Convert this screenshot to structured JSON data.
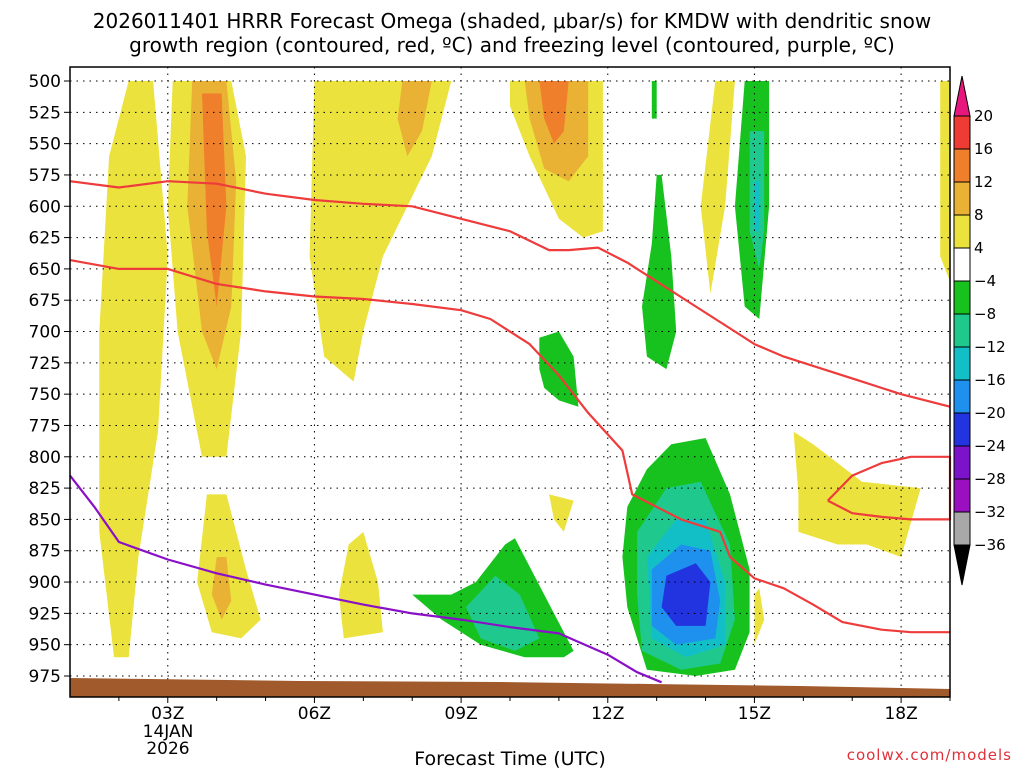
{
  "chart_data": {
    "type": "heatmap",
    "title": "2026011401 HRRR Forecast Omega (shaded, μbar/s) for KMDW with dendritic snow",
    "title_line2": "growth region (contoured, red, ºC) and freezing level (contoured, purple, ºC)",
    "xlabel": "Forecast Time (UTC)",
    "ylabel": "",
    "credit": "coolwx.com/models",
    "x_range_hours": [
      1,
      19
    ],
    "y_range_hpa": [
      975,
      500
    ],
    "y_ticks": [
      500,
      525,
      550,
      575,
      600,
      625,
      650,
      675,
      700,
      725,
      750,
      775,
      800,
      825,
      850,
      875,
      900,
      925,
      950,
      975
    ],
    "x_ticks": [
      {
        "hour": 3,
        "label": "03Z"
      },
      {
        "hour": 6,
        "label": "06Z"
      },
      {
        "hour": 9,
        "label": "09Z"
      },
      {
        "hour": 12,
        "label": "12Z"
      },
      {
        "hour": 15,
        "label": "15Z"
      },
      {
        "hour": 18,
        "label": "18Z"
      }
    ],
    "date_label": [
      "14JAN",
      "2026"
    ],
    "colorbar": {
      "labels": [
        "20",
        "16",
        "12",
        "8",
        "4",
        "−4",
        "−8",
        "−12",
        "−16",
        "−20",
        "−24",
        "−28",
        "−32",
        "−36"
      ],
      "colors": [
        "#e8177e",
        "#ee3b34",
        "#f07f2c",
        "#e9b234",
        "#ece23e",
        "#ffffff",
        "#17c21e",
        "#1fc98d",
        "#13bfc7",
        "#1e90ee",
        "#2233e0",
        "#7a13c9",
        "#9a10c0",
        "#a8a8a8",
        "#000000"
      ]
    },
    "omega_regions": [
      {
        "level": 4,
        "color": "#ece23e",
        "pts": [
          [
            1.8,
            560
          ],
          [
            2.2,
            500
          ],
          [
            2.7,
            500
          ],
          [
            3.0,
            640
          ],
          [
            2.8,
            780
          ],
          [
            2.4,
            880
          ],
          [
            2.2,
            960
          ],
          [
            1.9,
            960
          ],
          [
            1.6,
            860
          ],
          [
            1.6,
            700
          ]
        ]
      },
      {
        "level": 4,
        "color": "#ece23e",
        "pts": [
          [
            3.1,
            500
          ],
          [
            4.3,
            500
          ],
          [
            4.6,
            560
          ],
          [
            4.5,
            700
          ],
          [
            4.2,
            800
          ],
          [
            3.7,
            800
          ],
          [
            3.2,
            700
          ],
          [
            3.0,
            600
          ]
        ]
      },
      {
        "level": 8,
        "color": "#e9b234",
        "pts": [
          [
            3.5,
            500
          ],
          [
            4.2,
            500
          ],
          [
            4.4,
            580
          ],
          [
            4.3,
            680
          ],
          [
            4.0,
            730
          ],
          [
            3.7,
            700
          ],
          [
            3.4,
            600
          ]
        ]
      },
      {
        "level": 12,
        "color": "#f07f2c",
        "pts": [
          [
            3.7,
            510
          ],
          [
            4.1,
            510
          ],
          [
            4.2,
            600
          ],
          [
            4.0,
            680
          ],
          [
            3.8,
            620
          ]
        ]
      },
      {
        "level": 4,
        "color": "#ece23e",
        "pts": [
          [
            3.8,
            830
          ],
          [
            4.2,
            830
          ],
          [
            4.6,
            890
          ],
          [
            4.9,
            930
          ],
          [
            4.5,
            945
          ],
          [
            3.9,
            940
          ],
          [
            3.6,
            900
          ]
        ]
      },
      {
        "level": 8,
        "color": "#e9b234",
        "pts": [
          [
            4.0,
            880
          ],
          [
            4.2,
            880
          ],
          [
            4.3,
            915
          ],
          [
            4.1,
            930
          ],
          [
            3.9,
            910
          ]
        ]
      },
      {
        "level": 4,
        "color": "#ece23e",
        "pts": [
          [
            6.0,
            500
          ],
          [
            8.8,
            500
          ],
          [
            8.4,
            560
          ],
          [
            7.4,
            640
          ],
          [
            7.0,
            700
          ],
          [
            6.8,
            740
          ],
          [
            6.2,
            720
          ],
          [
            5.9,
            640
          ]
        ]
      },
      {
        "level": 8,
        "color": "#e9b234",
        "pts": [
          [
            7.8,
            500
          ],
          [
            8.4,
            500
          ],
          [
            8.2,
            540
          ],
          [
            7.9,
            560
          ],
          [
            7.7,
            530
          ]
        ]
      },
      {
        "level": 4,
        "color": "#ece23e",
        "pts": [
          [
            6.7,
            870
          ],
          [
            7.0,
            860
          ],
          [
            7.3,
            900
          ],
          [
            7.4,
            940
          ],
          [
            6.6,
            945
          ],
          [
            6.5,
            910
          ]
        ]
      },
      {
        "level": 4,
        "color": "#ece23e",
        "pts": [
          [
            10.0,
            500
          ],
          [
            11.9,
            500
          ],
          [
            11.9,
            620
          ],
          [
            11.5,
            625
          ],
          [
            11.0,
            610
          ],
          [
            10.4,
            560
          ],
          [
            10.0,
            520
          ]
        ]
      },
      {
        "level": 8,
        "color": "#e9b234",
        "pts": [
          [
            10.3,
            500
          ],
          [
            11.6,
            500
          ],
          [
            11.6,
            560
          ],
          [
            11.2,
            580
          ],
          [
            10.7,
            570
          ],
          [
            10.4,
            530
          ]
        ]
      },
      {
        "level": 12,
        "color": "#f07f2c",
        "pts": [
          [
            10.6,
            500
          ],
          [
            11.2,
            500
          ],
          [
            11.1,
            540
          ],
          [
            10.9,
            550
          ],
          [
            10.7,
            530
          ]
        ]
      },
      {
        "level": 4,
        "color": "#ece23e",
        "pts": [
          [
            14.2,
            500
          ],
          [
            14.6,
            500
          ],
          [
            14.4,
            600
          ],
          [
            14.1,
            670
          ],
          [
            13.9,
            600
          ]
        ]
      },
      {
        "level": 4,
        "color": "#ece23e",
        "pts": [
          [
            15.8,
            780
          ],
          [
            16.2,
            790
          ],
          [
            17.2,
            820
          ],
          [
            18.4,
            825
          ],
          [
            18.0,
            880
          ],
          [
            17.3,
            870
          ],
          [
            16.7,
            870
          ],
          [
            15.9,
            860
          ],
          [
            15.9,
            830
          ]
        ]
      },
      {
        "level": 4,
        "color": "#ece23e",
        "pts": [
          [
            15.0,
            910
          ],
          [
            15.1,
            905
          ],
          [
            15.2,
            930
          ],
          [
            15.0,
            950
          ]
        ]
      },
      {
        "level": 4,
        "color": "#ece23e",
        "pts": [
          [
            10.8,
            830
          ],
          [
            11.3,
            835
          ],
          [
            11.1,
            860
          ],
          [
            10.9,
            850
          ]
        ]
      },
      {
        "level": 4,
        "color": "#ece23e",
        "pts": [
          [
            18.8,
            500
          ],
          [
            19.0,
            500
          ],
          [
            19.0,
            660
          ],
          [
            18.8,
            640
          ]
        ]
      },
      {
        "level": -4,
        "color": "#17c21e",
        "pts": [
          [
            14.8,
            500
          ],
          [
            15.3,
            500
          ],
          [
            15.3,
            600
          ],
          [
            15.1,
            690
          ],
          [
            14.8,
            680
          ],
          [
            14.6,
            600
          ]
        ]
      },
      {
        "level": -8,
        "color": "#1fc98d",
        "pts": [
          [
            14.9,
            540
          ],
          [
            15.2,
            540
          ],
          [
            15.2,
            620
          ],
          [
            15.1,
            650
          ],
          [
            14.9,
            620
          ]
        ]
      },
      {
        "level": -12,
        "color": "#13bfc7",
        "pts": [
          [
            15.0,
            580
          ],
          [
            15.1,
            580
          ],
          [
            15.1,
            620
          ],
          [
            15.0,
            620
          ]
        ]
      },
      {
        "level": -4,
        "color": "#17c21e",
        "pts": [
          [
            13.0,
            575
          ],
          [
            13.1,
            575
          ],
          [
            13.3,
            640
          ],
          [
            13.4,
            700
          ],
          [
            13.2,
            730
          ],
          [
            12.8,
            720
          ],
          [
            12.7,
            680
          ],
          [
            12.9,
            630
          ]
        ]
      },
      {
        "level": -4,
        "color": "#17c21e",
        "pts": [
          [
            12.9,
            500
          ],
          [
            13.0,
            500
          ],
          [
            13.0,
            530
          ],
          [
            12.9,
            530
          ]
        ]
      },
      {
        "level": -4,
        "color": "#17c21e",
        "pts": [
          [
            10.6,
            705
          ],
          [
            11.0,
            700
          ],
          [
            11.3,
            720
          ],
          [
            11.4,
            760
          ],
          [
            11.0,
            755
          ],
          [
            10.7,
            745
          ],
          [
            10.6,
            730
          ]
        ]
      },
      {
        "level": -4,
        "color": "#17c21e",
        "pts": [
          [
            12.4,
            840
          ],
          [
            12.8,
            810
          ],
          [
            13.3,
            790
          ],
          [
            14.0,
            785
          ],
          [
            14.5,
            830
          ],
          [
            14.9,
            890
          ],
          [
            14.9,
            940
          ],
          [
            14.6,
            970
          ],
          [
            13.8,
            975
          ],
          [
            12.8,
            970
          ],
          [
            12.4,
            920
          ],
          [
            12.3,
            880
          ]
        ]
      },
      {
        "level": -8,
        "color": "#1fc98d",
        "pts": [
          [
            12.6,
            860
          ],
          [
            13.2,
            825
          ],
          [
            13.9,
            820
          ],
          [
            14.5,
            870
          ],
          [
            14.6,
            930
          ],
          [
            14.3,
            965
          ],
          [
            13.5,
            970
          ],
          [
            12.7,
            955
          ],
          [
            12.6,
            910
          ]
        ]
      },
      {
        "level": -12,
        "color": "#13bfc7",
        "pts": [
          [
            12.8,
            880
          ],
          [
            13.4,
            850
          ],
          [
            14.0,
            850
          ],
          [
            14.4,
            900
          ],
          [
            14.4,
            950
          ],
          [
            13.6,
            960
          ],
          [
            12.9,
            945
          ]
        ]
      },
      {
        "level": -16,
        "color": "#1e90ee",
        "pts": [
          [
            12.9,
            890
          ],
          [
            13.5,
            870
          ],
          [
            14.1,
            875
          ],
          [
            14.3,
            915
          ],
          [
            14.2,
            945
          ],
          [
            13.4,
            950
          ],
          [
            12.9,
            935
          ]
        ]
      },
      {
        "level": -20,
        "color": "#2233e0",
        "pts": [
          [
            13.2,
            895
          ],
          [
            13.8,
            885
          ],
          [
            14.1,
            900
          ],
          [
            14.0,
            935
          ],
          [
            13.4,
            935
          ],
          [
            13.1,
            920
          ]
        ]
      },
      {
        "level": -4,
        "color": "#17c21e",
        "pts": [
          [
            8.0,
            910
          ],
          [
            8.8,
            910
          ],
          [
            9.3,
            900
          ],
          [
            9.9,
            870
          ],
          [
            10.1,
            865
          ],
          [
            10.7,
            910
          ],
          [
            11.3,
            955
          ],
          [
            11.1,
            960
          ],
          [
            10.3,
            960
          ],
          [
            9.4,
            950
          ],
          [
            8.6,
            930
          ]
        ]
      },
      {
        "level": -8,
        "color": "#1fc98d",
        "pts": [
          [
            9.1,
            920
          ],
          [
            9.7,
            895
          ],
          [
            10.2,
            910
          ],
          [
            10.6,
            945
          ],
          [
            10.1,
            955
          ],
          [
            9.4,
            945
          ]
        ]
      }
    ],
    "dgz_line_top": [
      [
        1,
        580
      ],
      [
        2,
        585
      ],
      [
        3,
        580
      ],
      [
        4,
        582
      ],
      [
        5,
        590
      ],
      [
        6,
        595
      ],
      [
        7,
        598
      ],
      [
        8,
        600
      ],
      [
        9,
        610
      ],
      [
        10,
        620
      ],
      [
        10.8,
        635
      ],
      [
        11.2,
        635
      ],
      [
        11.8,
        633
      ],
      [
        12.4,
        645
      ],
      [
        13,
        660
      ],
      [
        13.8,
        680
      ],
      [
        14.6,
        700
      ],
      [
        15.0,
        710
      ],
      [
        15.6,
        720
      ],
      [
        16.4,
        730
      ],
      [
        17.2,
        740
      ],
      [
        18.0,
        750
      ],
      [
        19,
        760
      ]
    ],
    "dgz_line_bottom": [
      [
        1,
        643
      ],
      [
        2,
        650
      ],
      [
        3,
        650
      ],
      [
        4,
        662
      ],
      [
        5,
        668
      ],
      [
        6,
        672
      ],
      [
        7,
        674
      ],
      [
        8,
        678
      ],
      [
        9,
        683
      ],
      [
        9.6,
        690
      ],
      [
        10.4,
        710
      ],
      [
        11,
        735
      ],
      [
        11.6,
        765
      ],
      [
        12.3,
        795
      ],
      [
        12.5,
        830
      ],
      [
        13.5,
        850
      ],
      [
        14.3,
        860
      ],
      [
        14.5,
        880
      ],
      [
        15.0,
        897
      ],
      [
        15.6,
        905
      ],
      [
        16.2,
        918
      ],
      [
        16.8,
        932
      ],
      [
        17.6,
        938
      ],
      [
        18.2,
        940
      ],
      [
        19,
        940
      ]
    ],
    "dgz_loop_right": [
      [
        16.5,
        835
      ],
      [
        17,
        815
      ],
      [
        17.6,
        805
      ],
      [
        18.2,
        800
      ],
      [
        19,
        800
      ],
      [
        19,
        850
      ],
      [
        18.2,
        850
      ],
      [
        17.6,
        848
      ],
      [
        17.0,
        845
      ],
      [
        16.5,
        835
      ]
    ],
    "freezing_line": [
      [
        1,
        815
      ],
      [
        1.5,
        840
      ],
      [
        2,
        868
      ],
      [
        3,
        882
      ],
      [
        4,
        893
      ],
      [
        5,
        902
      ],
      [
        6,
        910
      ],
      [
        7,
        918
      ],
      [
        8,
        925
      ],
      [
        9,
        930
      ],
      [
        10,
        936
      ],
      [
        11,
        941
      ],
      [
        12,
        958
      ],
      [
        12.6,
        972
      ],
      [
        13.1,
        980
      ]
    ]
  }
}
